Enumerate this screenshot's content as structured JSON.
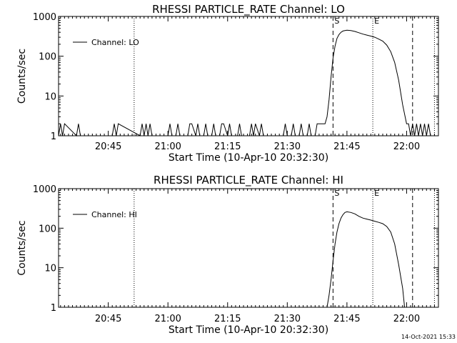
{
  "timestamp": "14-Oct-2021 15:33",
  "chart_data": [
    {
      "type": "line",
      "title": "RHESSI PARTICLE_RATE Channel: LO",
      "xlabel": "Start Time (10-Apr-10 20:32:30)",
      "ylabel": "Counts/sec",
      "y_scale": "log",
      "xlim": [
        "20:32:30",
        "22:08:00"
      ],
      "ylim": [
        1,
        1000
      ],
      "x_ticks": [
        "20:45",
        "21:00",
        "21:15",
        "21:30",
        "21:45",
        "22:00"
      ],
      "y_ticks": [
        "1",
        "10",
        "100",
        "1000"
      ],
      "legend_position": "top-left",
      "series": [
        {
          "name": "Channel: LO",
          "x": [
            "20:32:30",
            "20:33:00",
            "20:33:30",
            "20:34:00",
            "20:37:00",
            "20:37:30",
            "20:38:00",
            "20:38:30",
            "20:46:00",
            "20:46:30",
            "20:47:00",
            "20:47:30",
            "20:53:00",
            "20:53:30",
            "20:54:00",
            "20:54:30",
            "20:55:00",
            "20:55:30",
            "20:56:00",
            "21:00:00",
            "21:00:30",
            "21:01:00",
            "21:02:00",
            "21:02:30",
            "21:03:00",
            "21:05:00",
            "21:05:30",
            "21:06:00",
            "21:07:00",
            "21:07:30",
            "21:08:00",
            "21:09:00",
            "21:09:30",
            "21:10:00",
            "21:11:00",
            "21:11:30",
            "21:12:00",
            "21:13:00",
            "21:13:30",
            "21:14:00",
            "21:15:00",
            "21:15:30",
            "21:16:00",
            "21:17:30",
            "21:18:00",
            "21:18:30",
            "21:20:30",
            "21:21:00",
            "21:21:30",
            "21:22:00",
            "21:23:00",
            "21:23:30",
            "21:24:00",
            "21:29:00",
            "21:29:30",
            "21:30:00",
            "21:31:00",
            "21:31:30",
            "21:32:00",
            "21:33:00",
            "21:33:30",
            "21:34:00",
            "21:35:00",
            "21:35:30",
            "21:36:00",
            "21:37:00",
            "21:37:30",
            "21:38:00",
            "21:39:00",
            "21:39:30",
            "21:40:00",
            "21:40:30",
            "21:41:00",
            "21:41:30",
            "21:42:00",
            "21:42:30",
            "21:43:00",
            "21:43:30",
            "21:44:00",
            "21:44:30",
            "21:45:00",
            "21:46:00",
            "21:47:00",
            "21:48:00",
            "21:49:00",
            "21:50:00",
            "21:51:00",
            "21:52:00",
            "21:53:00",
            "21:54:00",
            "21:55:00",
            "21:56:00",
            "21:57:00",
            "21:58:00",
            "21:59:00",
            "22:00:00",
            "22:00:30",
            "22:01:00",
            "22:01:30",
            "22:02:00",
            "22:02:30",
            "22:03:00",
            "22:03:30",
            "22:04:00",
            "22:04:30",
            "22:05:00",
            "22:05:30",
            "22:06:00"
          ],
          "y": [
            1,
            2,
            1,
            2,
            1,
            2,
            1,
            1,
            1,
            2,
            1,
            2,
            1,
            2,
            1,
            2,
            1,
            2,
            1,
            1,
            2,
            1,
            1,
            2,
            1,
            1,
            2,
            2,
            1,
            2,
            1,
            1,
            2,
            1,
            1,
            2,
            1,
            1,
            2,
            2,
            1,
            2,
            1,
            1,
            2,
            1,
            1,
            2,
            1,
            2,
            1,
            2,
            1,
            1,
            2,
            1,
            1,
            2,
            1,
            1,
            2,
            1,
            1,
            2,
            1,
            1,
            2,
            2,
            2,
            2,
            3,
            8,
            30,
            90,
            180,
            280,
            350,
            400,
            430,
            440,
            450,
            440,
            420,
            390,
            360,
            340,
            320,
            300,
            270,
            240,
            190,
            130,
            70,
            25,
            6,
            2,
            2,
            1,
            2,
            1,
            2,
            1,
            2,
            1,
            2,
            1,
            2,
            1
          ]
        }
      ],
      "vlines": [
        {
          "x": "20:51:30",
          "style": "dotted",
          "label": ""
        },
        {
          "x": "21:41:30",
          "style": "dashed",
          "label": "S"
        },
        {
          "x": "21:51:30",
          "style": "dotted",
          "label": "E"
        },
        {
          "x": "22:01:30",
          "style": "dashed",
          "label": ""
        },
        {
          "x": "22:07:00",
          "style": "dotted",
          "label": ""
        }
      ]
    },
    {
      "type": "line",
      "title": "RHESSI PARTICLE_RATE Channel: HI",
      "xlabel": "Start Time (10-Apr-10 20:32:30)",
      "ylabel": "Counts/sec",
      "y_scale": "log",
      "xlim": [
        "20:32:30",
        "22:08:00"
      ],
      "ylim": [
        1,
        1000
      ],
      "x_ticks": [
        "20:45",
        "21:00",
        "21:15",
        "21:30",
        "21:45",
        "22:00"
      ],
      "y_ticks": [
        "1",
        "10",
        "100",
        "1000"
      ],
      "legend_position": "top-left",
      "series": [
        {
          "name": "Channel: HI",
          "x": [
            "21:40:00",
            "21:40:30",
            "21:41:00",
            "21:41:30",
            "21:42:00",
            "21:42:30",
            "21:43:00",
            "21:43:30",
            "21:44:00",
            "21:44:30",
            "21:45:00",
            "21:46:00",
            "21:47:00",
            "21:48:00",
            "21:49:00",
            "21:50:00",
            "21:51:00",
            "21:52:00",
            "21:53:00",
            "21:54:00",
            "21:55:00",
            "21:56:00",
            "21:57:00",
            "21:58:00",
            "21:59:00",
            "21:59:30"
          ],
          "y": [
            1,
            2,
            5,
            15,
            40,
            80,
            130,
            180,
            220,
            250,
            260,
            250,
            230,
            200,
            180,
            170,
            160,
            150,
            140,
            130,
            110,
            80,
            40,
            12,
            3,
            1
          ]
        }
      ],
      "vlines": [
        {
          "x": "20:51:30",
          "style": "dotted",
          "label": ""
        },
        {
          "x": "21:41:30",
          "style": "dashed",
          "label": "S"
        },
        {
          "x": "21:51:30",
          "style": "dotted",
          "label": "E"
        },
        {
          "x": "22:01:30",
          "style": "dashed",
          "label": ""
        },
        {
          "x": "22:07:00",
          "style": "dotted",
          "label": ""
        }
      ]
    }
  ]
}
